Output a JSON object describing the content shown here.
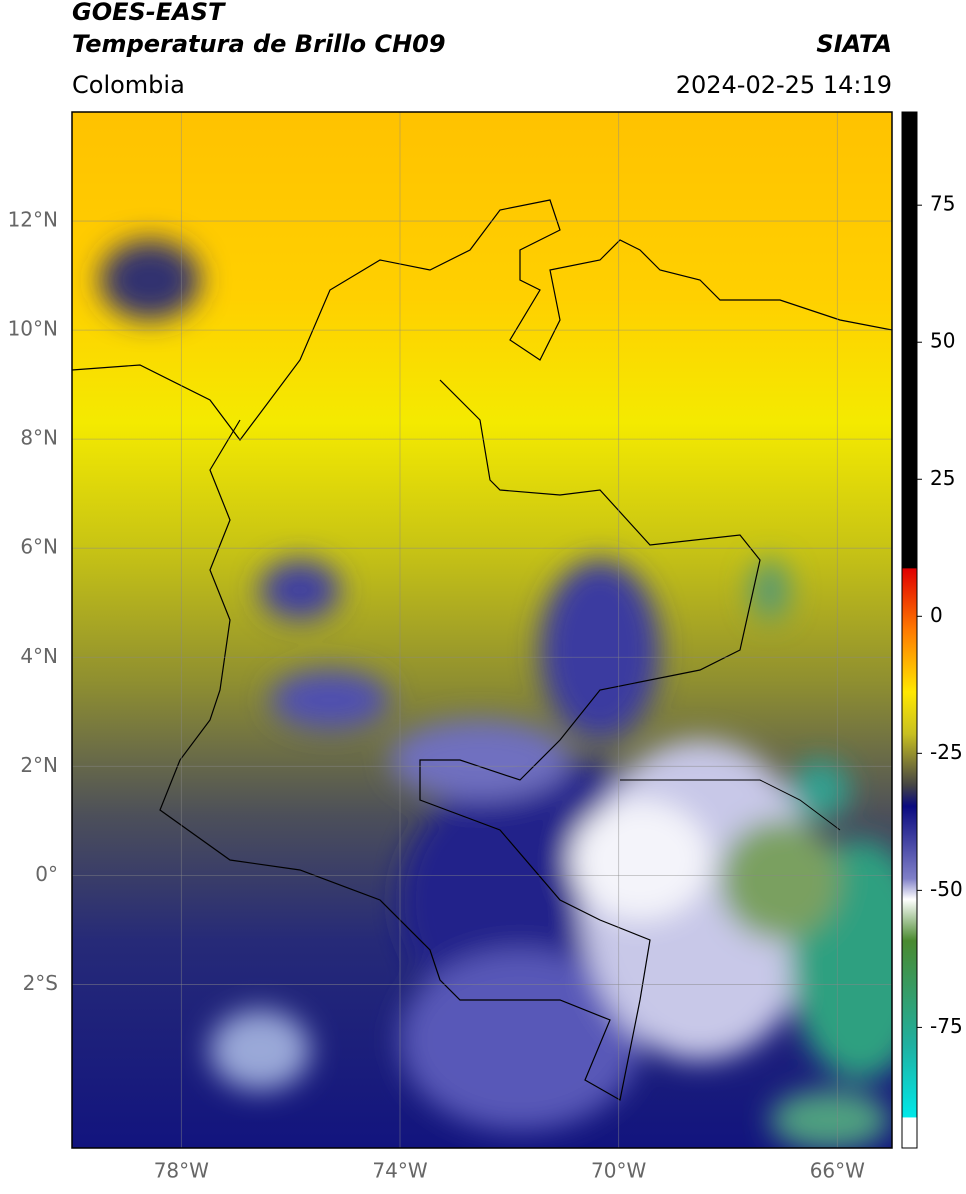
{
  "header": {
    "title": "GOES-EAST",
    "subtitle": "Temperatura de Brillo CH09",
    "source": "SIATA",
    "region": "Colombia",
    "datetime": "2024-02-25 14:19"
  },
  "map": {
    "xlim": [
      -80,
      -65
    ],
    "ylim": [
      -5,
      14
    ],
    "lat_ticks": [
      {
        "value": 12,
        "label": "12°N"
      },
      {
        "value": 10,
        "label": "10°N"
      },
      {
        "value": 8,
        "label": "8°N"
      },
      {
        "value": 6,
        "label": "6°N"
      },
      {
        "value": 4,
        "label": "4°N"
      },
      {
        "value": 2,
        "label": "2°N"
      },
      {
        "value": 0,
        "label": "0°"
      },
      {
        "value": -2,
        "label": "2°S"
      }
    ],
    "lon_ticks": [
      {
        "value": -78,
        "label": "78°W"
      },
      {
        "value": -74,
        "label": "74°W"
      },
      {
        "value": -70,
        "label": "70°W"
      },
      {
        "value": -66,
        "label": "66°W"
      }
    ]
  },
  "colorbar": {
    "lim": [
      -97,
      92
    ],
    "ticks": [
      75,
      50,
      25,
      0,
      -25,
      -50,
      -75
    ]
  }
}
